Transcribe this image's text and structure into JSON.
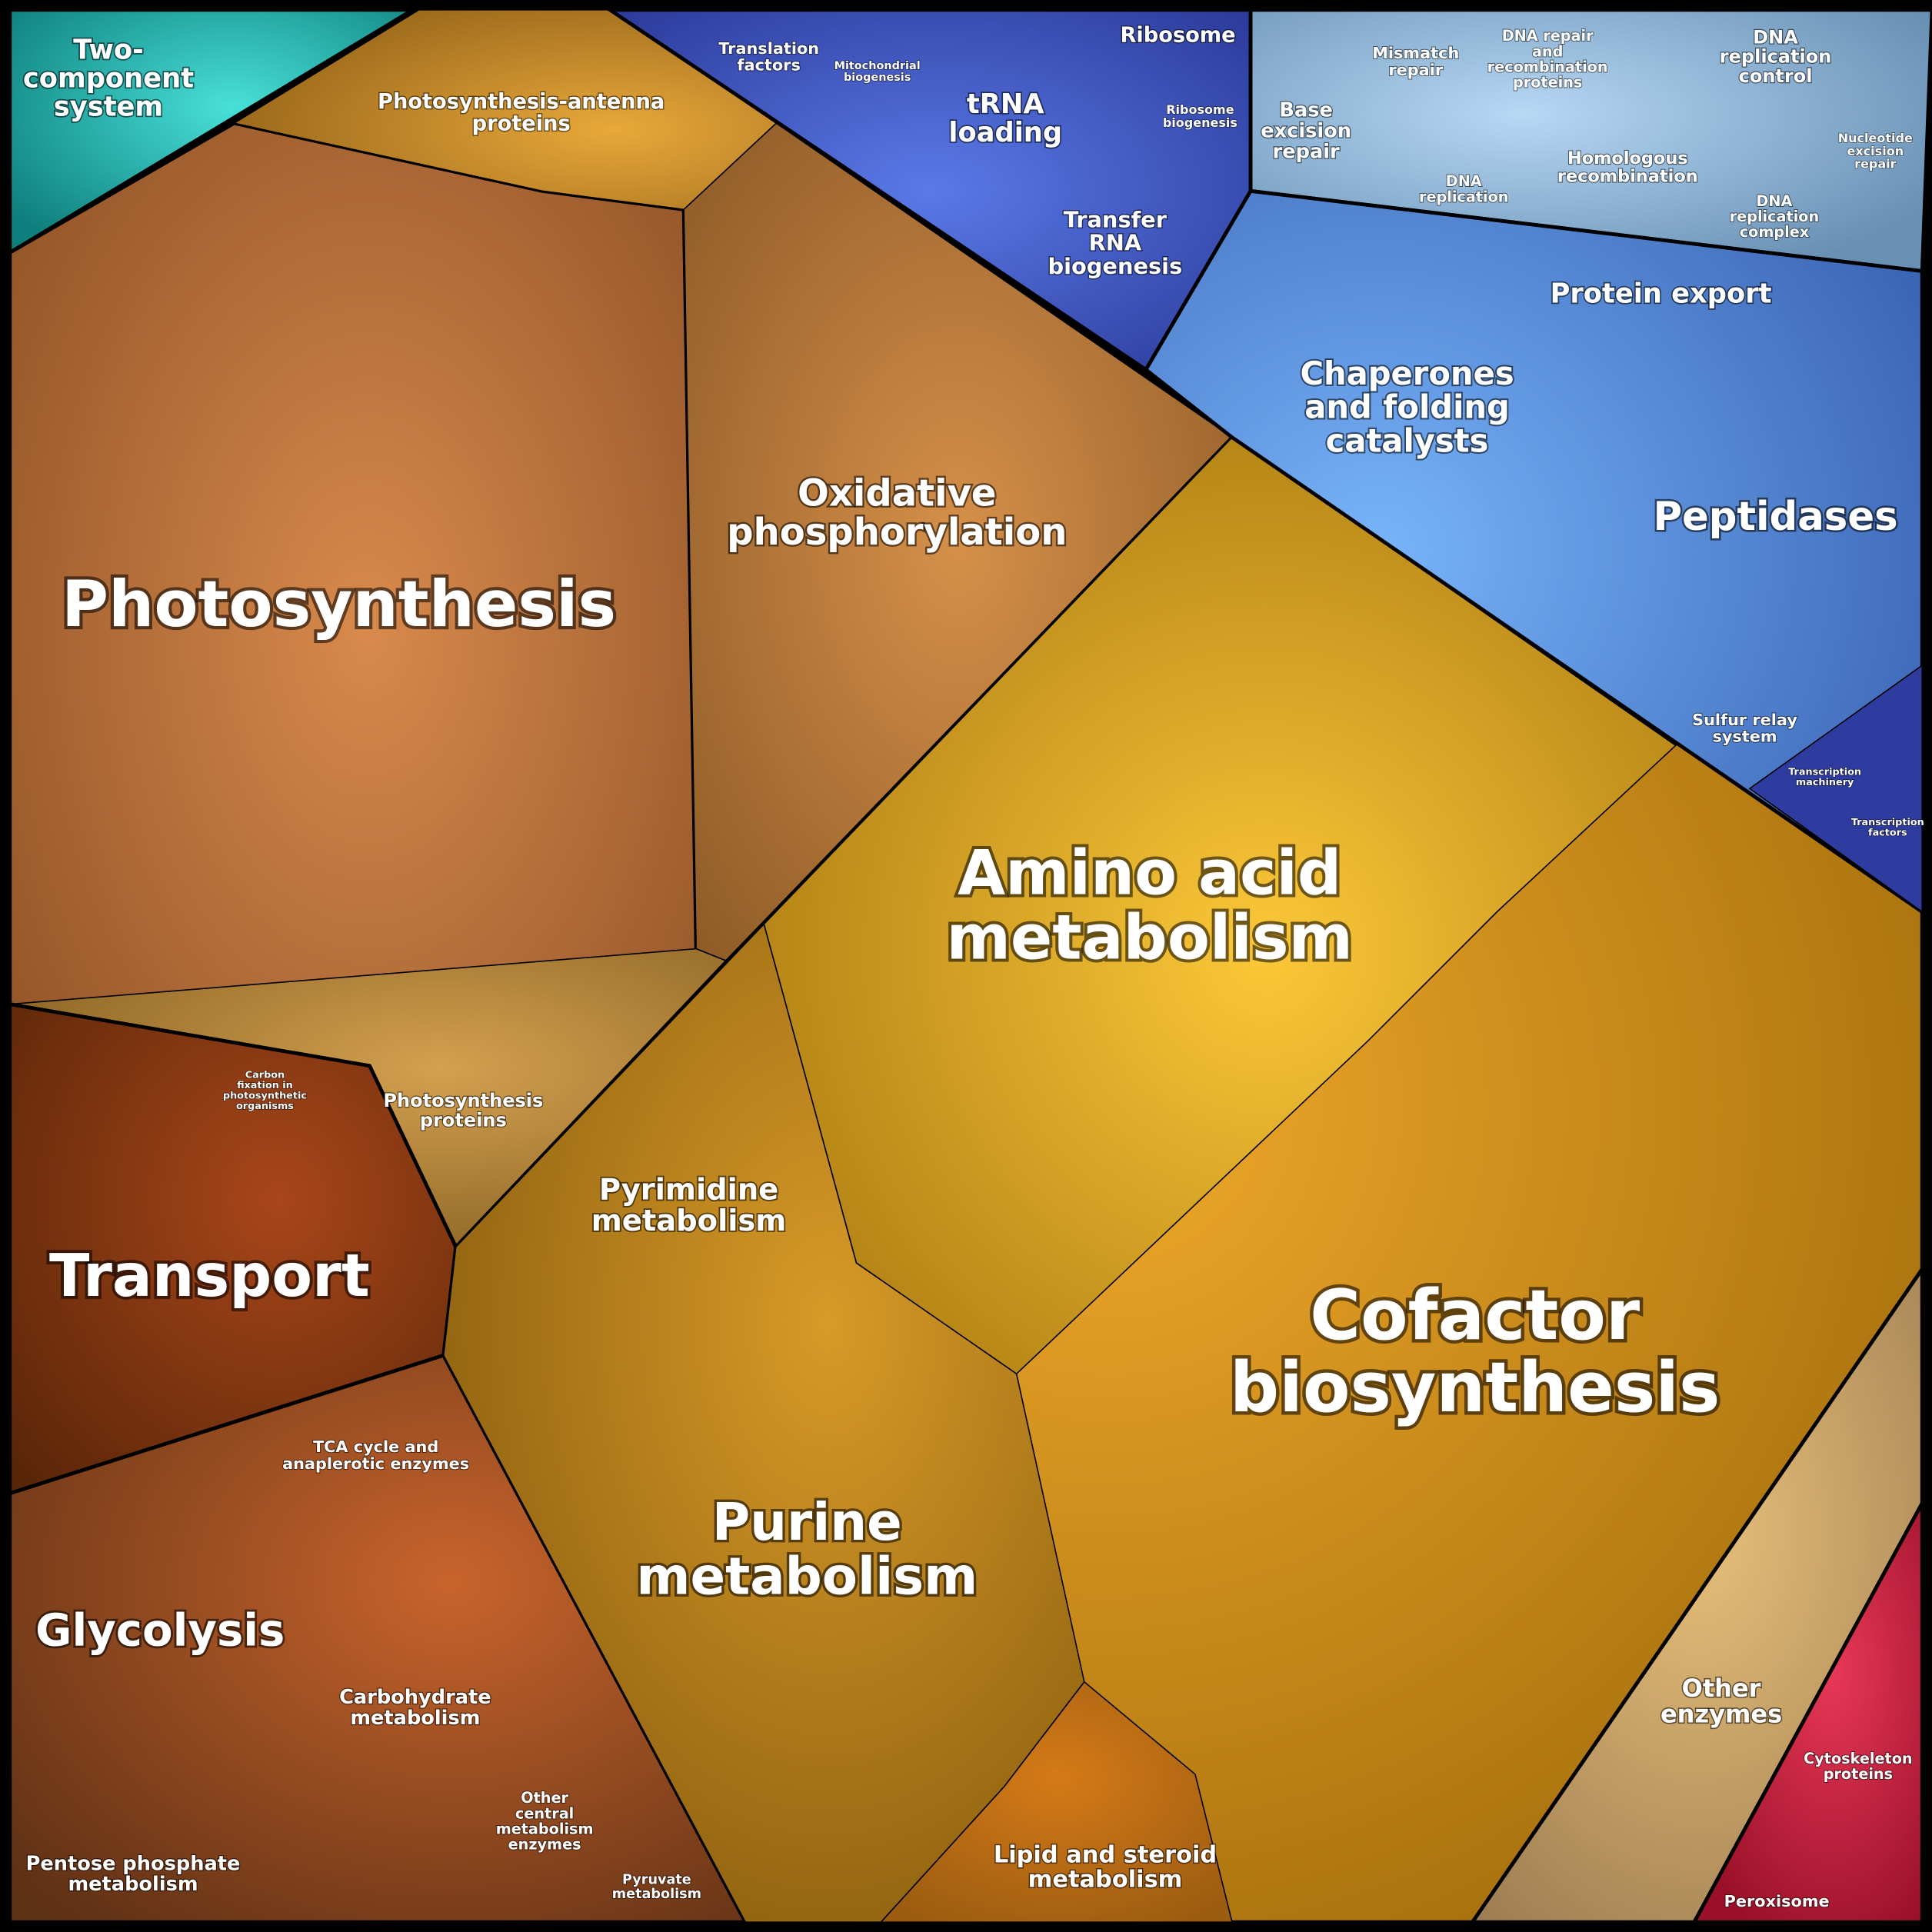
{
  "cells": [
    {
      "label": [
        "Two-",
        "component",
        "system"
      ]
    },
    {
      "label": [
        "Photosynthesis-antenna",
        "proteins"
      ]
    },
    {
      "label": [
        "Photosynthesis"
      ]
    },
    {
      "label": [
        "Oxidative",
        "phosphorylation"
      ]
    },
    {
      "label": [
        "Carbon",
        "fixation in",
        "photosynthetic",
        "organisms"
      ]
    },
    {
      "label": [
        "Photosynthesis",
        "proteins"
      ]
    },
    {
      "label": [
        "Transport"
      ]
    },
    {
      "label": [
        "TCA cycle and",
        "anaplerotic enzymes"
      ]
    },
    {
      "label": [
        "Glycolysis"
      ]
    },
    {
      "label": [
        "Carbohydrate",
        "metabolism"
      ]
    },
    {
      "label": [
        "Pentose phosphate",
        "metabolism"
      ]
    },
    {
      "label": [
        "Other",
        "central",
        "metabolism",
        "enzymes"
      ]
    },
    {
      "label": [
        "Pyruvate",
        "metabolism"
      ]
    },
    {
      "label": [
        "Pyrimidine",
        "metabolism"
      ]
    },
    {
      "label": [
        "Amino acid",
        "metabolism"
      ]
    },
    {
      "label": [
        "Purine",
        "metabolism"
      ]
    },
    {
      "label": [
        "Lipid and steroid",
        "metabolism"
      ]
    },
    {
      "label": [
        "Cofactor",
        "biosynthesis"
      ]
    },
    {
      "label": [
        "Other",
        "enzymes"
      ]
    },
    {
      "label": [
        "Cytoskeleton",
        "proteins"
      ]
    },
    {
      "label": [
        "Peroxisome"
      ]
    },
    {
      "label": [
        "Translation",
        "factors"
      ]
    },
    {
      "label": [
        "Mitochondrial",
        "biogenesis"
      ]
    },
    {
      "label": [
        "Ribosome"
      ]
    },
    {
      "label": [
        "tRNA",
        "loading"
      ]
    },
    {
      "label": [
        "Ribosome",
        "biogenesis"
      ]
    },
    {
      "label": [
        "Transfer",
        "RNA",
        "biogenesis"
      ]
    },
    {
      "label": [
        "Base",
        "excision",
        "repair"
      ]
    },
    {
      "label": [
        "Mismatch",
        "repair"
      ]
    },
    {
      "label": [
        "DNA repair",
        "and",
        "recombination",
        "proteins"
      ]
    },
    {
      "label": [
        "DNA",
        "replication",
        "control"
      ]
    },
    {
      "label": [
        "DNA",
        "replication"
      ]
    },
    {
      "label": [
        "Homologous",
        "recombination"
      ]
    },
    {
      "label": [
        "DNA",
        "replication",
        "complex"
      ]
    },
    {
      "label": [
        "Nucleotide",
        "excision",
        "repair"
      ]
    },
    {
      "label": [
        "Protein export"
      ]
    },
    {
      "label": [
        "Chaperones",
        "and folding",
        "catalysts"
      ]
    },
    {
      "label": [
        "Peptidases"
      ]
    },
    {
      "label": [
        "Sulfur relay",
        "system"
      ]
    },
    {
      "label": [
        "Transcription",
        "machinery"
      ]
    },
    {
      "label": [
        "Transcription",
        "factors"
      ]
    }
  ]
}
